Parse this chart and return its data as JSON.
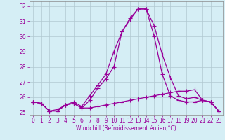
{
  "xlabel": "Windchill (Refroidissement éolien,°C)",
  "x": [
    0,
    1,
    2,
    3,
    4,
    5,
    6,
    7,
    8,
    9,
    10,
    11,
    12,
    13,
    14,
    15,
    16,
    17,
    18,
    19,
    20,
    21,
    22,
    23
  ],
  "line1": [
    25.7,
    25.6,
    25.1,
    25.1,
    25.5,
    25.6,
    25.3,
    25.3,
    25.4,
    25.5,
    25.6,
    25.7,
    25.8,
    25.9,
    26.0,
    26.1,
    26.2,
    26.3,
    26.4,
    26.4,
    26.5,
    25.8,
    25.7,
    25.1
  ],
  "line2": [
    25.7,
    25.6,
    25.1,
    25.1,
    25.5,
    25.6,
    25.3,
    25.8,
    26.6,
    27.2,
    28.0,
    30.3,
    31.1,
    31.8,
    31.8,
    30.7,
    28.8,
    27.3,
    26.1,
    25.9,
    26.0,
    25.8,
    25.7,
    25.1
  ],
  "line3": [
    25.7,
    25.6,
    25.1,
    25.2,
    25.5,
    25.7,
    25.4,
    26.1,
    26.8,
    27.5,
    29.0,
    30.3,
    31.2,
    31.8,
    31.8,
    30.0,
    27.5,
    26.1,
    25.8,
    25.7,
    25.7,
    25.8,
    25.7,
    25.1
  ],
  "ylim": [
    24.85,
    32.3
  ],
  "xlim": [
    -0.5,
    23.5
  ],
  "yticks": [
    25,
    26,
    27,
    28,
    29,
    30,
    31,
    32
  ],
  "xticks": [
    0,
    1,
    2,
    3,
    4,
    5,
    6,
    7,
    8,
    9,
    10,
    11,
    12,
    13,
    14,
    15,
    16,
    17,
    18,
    19,
    20,
    21,
    22,
    23
  ],
  "line_color": "#990099",
  "bg_color": "#d5eef5",
  "grid_color": "#b0c8d0",
  "marker": "+",
  "markersize": 4,
  "linewidth": 0.9
}
